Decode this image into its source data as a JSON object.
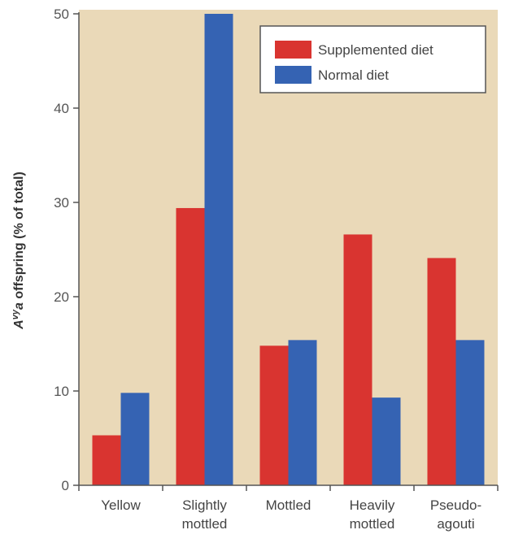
{
  "chart_data": {
    "type": "bar",
    "title": "",
    "xlabel": "",
    "ylabel": "Aᵛʸa offspring (% of total)",
    "ylabel_parts": {
      "base": "A",
      "sup": "vy",
      "rest": "a",
      "suffix": " offspring (% of total)"
    },
    "ylim": [
      0,
      50
    ],
    "yticks": [
      0,
      10,
      20,
      30,
      40,
      50
    ],
    "grid": false,
    "legend_position": "top-right",
    "categories": [
      [
        "Yellow"
      ],
      [
        "Slightly",
        "mottled"
      ],
      [
        "Mottled"
      ],
      [
        "Heavily",
        "mottled"
      ],
      [
        "Pseudo-",
        "agouti"
      ]
    ],
    "series": [
      {
        "name": "Supplemented diet",
        "color": "#d93430",
        "values": [
          5.3,
          29.4,
          14.8,
          26.6,
          24.1
        ]
      },
      {
        "name": "Normal diet",
        "color": "#3563b3",
        "values": [
          9.8,
          50.0,
          15.4,
          9.3,
          15.4
        ]
      }
    ],
    "background_color": "#ead9b8"
  }
}
